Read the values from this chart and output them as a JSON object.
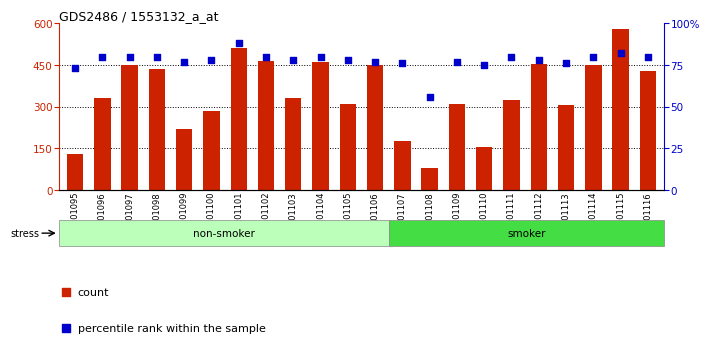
{
  "title": "GDS2486 / 1553132_a_at",
  "samples": [
    "GSM101095",
    "GSM101096",
    "GSM101097",
    "GSM101098",
    "GSM101099",
    "GSM101100",
    "GSM101101",
    "GSM101102",
    "GSM101103",
    "GSM101104",
    "GSM101105",
    "GSM101106",
    "GSM101107",
    "GSM101108",
    "GSM101109",
    "GSM101110",
    "GSM101111",
    "GSM101112",
    "GSM101113",
    "GSM101114",
    "GSM101115",
    "GSM101116"
  ],
  "counts": [
    130,
    330,
    450,
    435,
    220,
    285,
    510,
    465,
    330,
    460,
    310,
    450,
    175,
    80,
    310,
    155,
    325,
    455,
    305,
    450,
    580,
    430
  ],
  "percentile_ranks": [
    73,
    80,
    80,
    80,
    77,
    78,
    88,
    80,
    78,
    80,
    78,
    77,
    76,
    56,
    77,
    75,
    80,
    78,
    76,
    80,
    82,
    80
  ],
  "non_smoker_count": 12,
  "smoker_count": 10,
  "bar_color": "#cc2200",
  "dot_color": "#0000cc",
  "left_ylim": [
    0,
    600
  ],
  "left_yticks": [
    0,
    150,
    300,
    450,
    600
  ],
  "right_ylim": [
    0,
    100
  ],
  "right_yticks": [
    0,
    25,
    50,
    75,
    100
  ],
  "non_smoker_color": "#bbffbb",
  "smoker_color": "#44dd44",
  "stress_label": "stress",
  "group_label_nonsmoker": "non-smoker",
  "group_label_smoker": "smoker",
  "legend_count": "count",
  "legend_pct": "percentile rank within the sample",
  "bg_color": "#ffffff",
  "grid_color": [
    150,
    300,
    450
  ]
}
